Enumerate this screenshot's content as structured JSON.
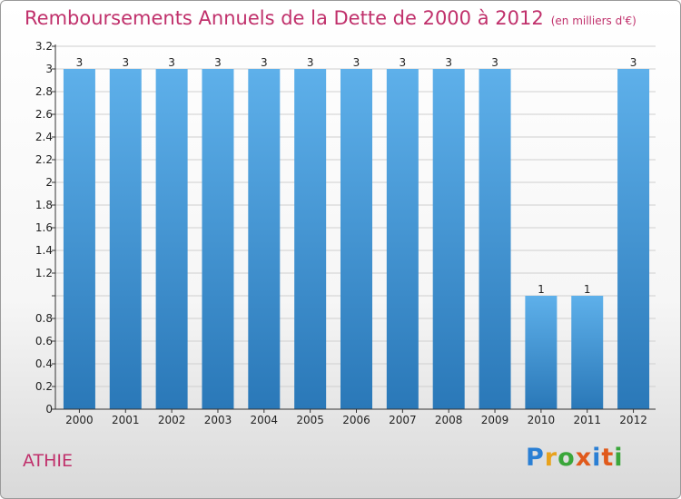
{
  "title": "Remboursements Annuels de la Dette de 2000 à 2012",
  "unit": "(en milliers d'€)",
  "commune": "ATHIE",
  "logo": {
    "letters": [
      {
        "char": "P",
        "color": "#2a7fd4"
      },
      {
        "char": "r",
        "color": "#e8a21c"
      },
      {
        "char": "o",
        "color": "#3aa63a"
      },
      {
        "char": "x",
        "color": "#e05a1c"
      },
      {
        "char": "i",
        "color": "#2a7fd4"
      },
      {
        "char": "t",
        "color": "#e05a1c"
      },
      {
        "char": "i",
        "color": "#3aa63a"
      }
    ]
  },
  "chart_data": {
    "type": "bar",
    "title": "Remboursements Annuels de la Dette de 2000 à 2012",
    "xlabel": "",
    "ylabel": "",
    "ylim": [
      0,
      3.2
    ],
    "y_ticks": [
      0,
      0.2,
      0.4,
      0.6,
      0.8,
      1,
      1.2,
      1.4,
      1.6,
      1.8,
      2,
      2.2,
      2.4,
      2.6,
      2.8,
      3,
      3.2
    ],
    "y_tick_labels": [
      "0",
      "0.2",
      "0.4",
      "0.6",
      "0.8",
      "",
      "1.2",
      "1.4",
      "1.6",
      "1.8",
      "2",
      "2.2",
      "2.4",
      "2.6",
      "2.8",
      "3",
      "3.2"
    ],
    "grid": true,
    "categories": [
      "2000",
      "2001",
      "2002",
      "2003",
      "2004",
      "2005",
      "2006",
      "2007",
      "2008",
      "2009",
      "2010",
      "2011",
      "2012"
    ],
    "values": [
      3,
      3,
      3,
      3,
      3,
      3,
      3,
      3,
      3,
      3,
      1,
      1,
      3
    ],
    "value_labels": [
      "3",
      "3",
      "3",
      "3",
      "3",
      "3",
      "3",
      "3",
      "3",
      "3",
      "1",
      "1",
      "3"
    ],
    "colors": {
      "bar_top": "#5eb0ea",
      "bar_bottom": "#2a78b8",
      "grid": "#cfcfcf",
      "axis": "#333333",
      "text": "#222222"
    }
  }
}
